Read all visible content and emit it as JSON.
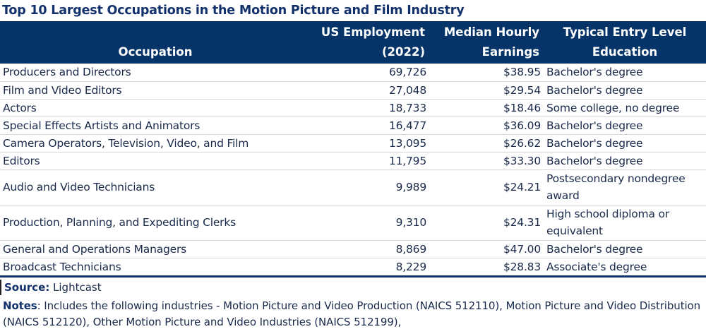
{
  "title": "Top 10 Largest Occupations in the Motion Picture and Film Industry",
  "columns": [
    "Occupation",
    "US Employment (2022)",
    "Median Hourly Earnings",
    "Typical Entry Level Education"
  ],
  "rows": [
    [
      "Producers and Directors",
      "69,726",
      "$38.95",
      "Bachelor's degree"
    ],
    [
      "Film and Video Editors",
      "27,048",
      "$29.54",
      "Bachelor's degree"
    ],
    [
      "Actors",
      "18,733",
      "$18.46",
      "Some college, no degree"
    ],
    [
      "Special Effects Artists and Animators",
      "16,477",
      "$36.09",
      "Bachelor's degree"
    ],
    [
      "Camera Operators, Television, Video, and Film",
      "13,095",
      "$26.62",
      "Bachelor's degree"
    ],
    [
      "Editors",
      "11,795",
      "$33.30",
      "Bachelor's degree"
    ],
    [
      "Audio and Video Technicians",
      "9,989",
      "$24.21",
      "Postsecondary nondegree award"
    ],
    [
      "Production, Planning, and Expediting Clerks",
      "9,310",
      "$24.31",
      "High school diploma or equivalent"
    ],
    [
      "General and Operations Managers",
      "8,869",
      "$47.00",
      "Bachelor's degree"
    ],
    [
      "Broadcast Technicians",
      "8,229",
      "$28.83",
      "Associate's degree"
    ]
  ],
  "source": {
    "label": "Source:",
    "value": "Lightcast"
  },
  "notes": {
    "label": "Notes",
    "value": ": Includes the following industries - Motion Picture and Video Production (NAICS 512110), Motion Picture and Video Distribution (NAICS 512120), Other Motion Picture and Video Industries (NAICS 512199),"
  },
  "colors": {
    "header_bg": "#063468",
    "title": "#12306a"
  }
}
